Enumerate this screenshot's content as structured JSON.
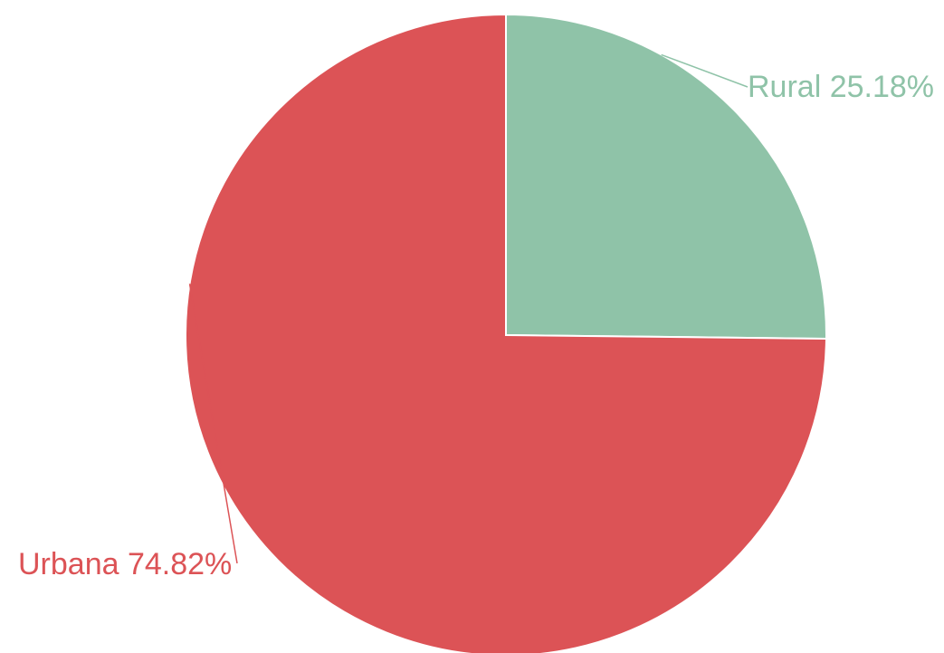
{
  "chart_data": {
    "type": "pie",
    "title": "",
    "slices": [
      {
        "label": "Rural",
        "value": 25.18,
        "display": "Rural 25.18%",
        "color": "#8fc3a8"
      },
      {
        "label": "Urbana",
        "value": 74.82,
        "display": "Urbana 74.82%",
        "color": "#dc5356"
      }
    ],
    "start_angle": "12 o'clock",
    "direction": "clockwise",
    "legend": "none",
    "labels": "outside with leader lines"
  }
}
